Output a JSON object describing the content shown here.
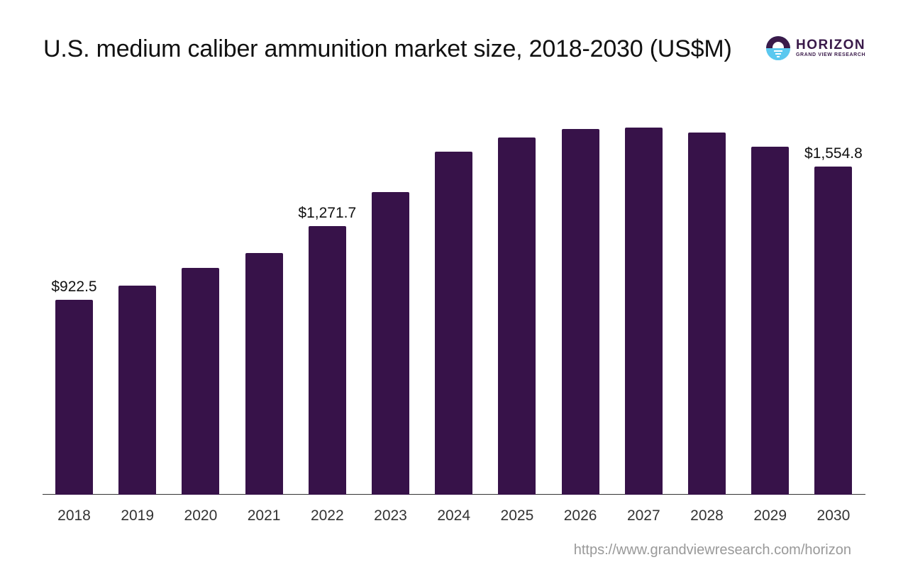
{
  "title": "U.S. medium caliber ammunition market size, 2018-2030 (US$M)",
  "logo": {
    "name": "HORIZON",
    "subtitle": "GRAND VIEW RESEARCH",
    "icon": "horizon-sun-icon"
  },
  "source": "https://www.grandviewresearch.com/horizon",
  "colors": {
    "bar": "#371249",
    "logo_dark": "#3a1a4a",
    "logo_light": "#5bc8ef",
    "axis": "#333333",
    "source_text": "#999999"
  },
  "chart_data": {
    "type": "bar",
    "title": "U.S. medium caliber ammunition market size, 2018-2030 (US$M)",
    "xlabel": "",
    "ylabel": "",
    "categories": [
      "2018",
      "2019",
      "2020",
      "2021",
      "2022",
      "2023",
      "2024",
      "2025",
      "2026",
      "2027",
      "2028",
      "2029",
      "2030"
    ],
    "values": [
      922.5,
      990,
      1074,
      1144,
      1271.7,
      1432,
      1624,
      1691,
      1731,
      1738,
      1714,
      1647,
      1554.8
    ],
    "data_labels": [
      {
        "index": 0,
        "text": "$922.5"
      },
      {
        "index": 4,
        "text": "$1,271.7"
      },
      {
        "index": 12,
        "text": "$1,554.8"
      }
    ],
    "ylim": [
      0,
      1800
    ],
    "grid": false,
    "legend": "none"
  }
}
